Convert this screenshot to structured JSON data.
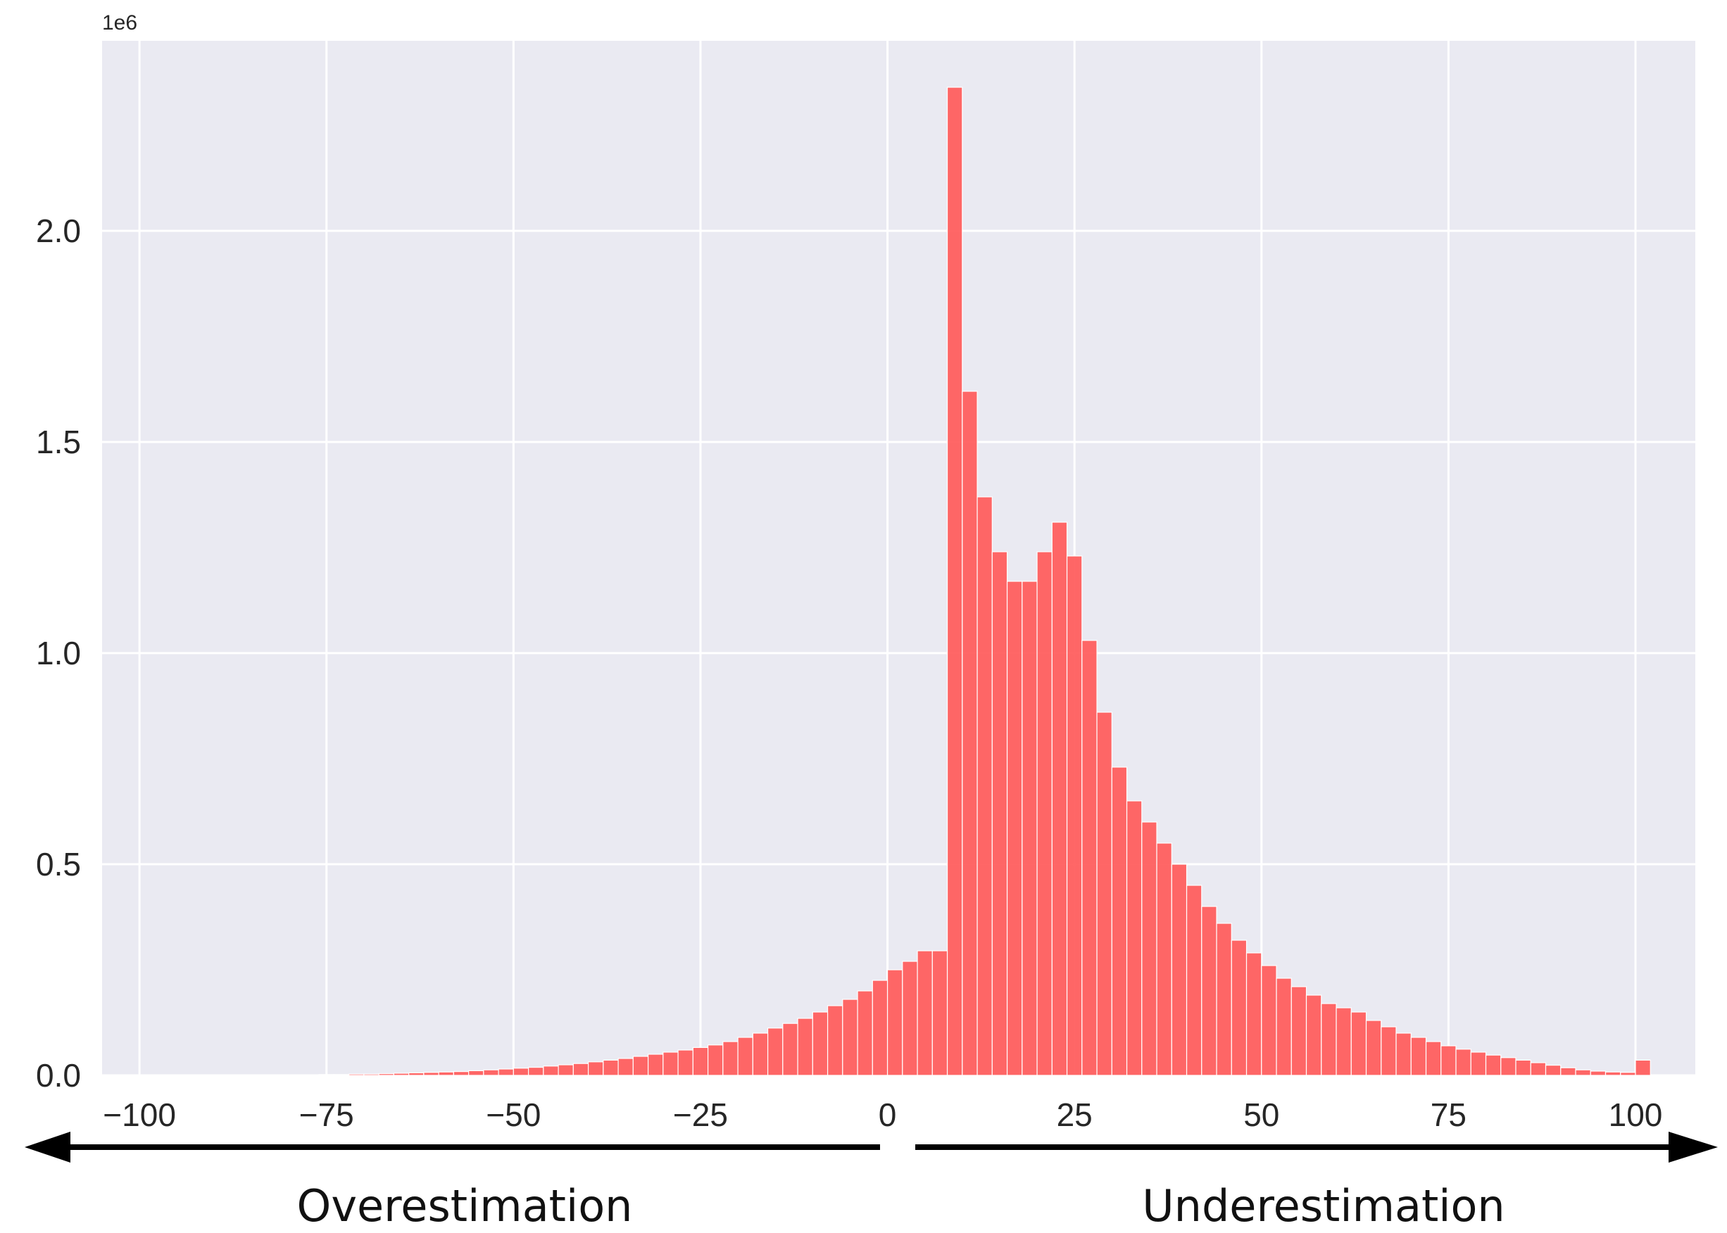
{
  "colors": {
    "bar": "#ff5a5a",
    "plot_background": "#eaeaf2",
    "grid": "#ffffff",
    "arrow": "#000000"
  },
  "chart_data": {
    "type": "bar",
    "title": "",
    "xlabel": "",
    "ylabel": "",
    "y_offset_label": "1e6",
    "xlim": [
      -105,
      108
    ],
    "ylim": [
      0,
      2.45
    ],
    "grid": true,
    "xticks": [
      -100,
      -75,
      -50,
      -25,
      0,
      25,
      50,
      75,
      100
    ],
    "xtick_labels": [
      "−100",
      "−75",
      "−50",
      "−25",
      "0",
      "25",
      "50",
      "75",
      "100"
    ],
    "yticks": [
      0.0,
      0.5,
      1.0,
      1.5,
      2.0
    ],
    "ytick_labels": [
      "0.0",
      "0.5",
      "1.0",
      "1.5",
      "2.0"
    ],
    "bin_start": -100,
    "bin_width": 2,
    "values": [
      0,
      0,
      0,
      0,
      0,
      0,
      0,
      0,
      0,
      0,
      0,
      0,
      0.002,
      0.002,
      0.003,
      0.003,
      0.004,
      0.005,
      0.006,
      0.007,
      0.008,
      0.009,
      0.011,
      0.013,
      0.015,
      0.017,
      0.019,
      0.022,
      0.025,
      0.028,
      0.032,
      0.036,
      0.04,
      0.045,
      0.05,
      0.055,
      0.06,
      0.066,
      0.072,
      0.08,
      0.09,
      0.1,
      0.112,
      0.123,
      0.135,
      0.15,
      0.165,
      0.18,
      0.2,
      0.225,
      0.25,
      0.27,
      0.295,
      0.295,
      2.34,
      1.62,
      1.37,
      1.24,
      1.17,
      1.17,
      1.24,
      1.31,
      1.23,
      1.03,
      0.86,
      0.73,
      0.65,
      0.6,
      0.55,
      0.5,
      0.45,
      0.4,
      0.36,
      0.32,
      0.29,
      0.26,
      0.23,
      0.21,
      0.19,
      0.17,
      0.16,
      0.15,
      0.13,
      0.115,
      0.1,
      0.09,
      0.08,
      0.07,
      0.062,
      0.055,
      0.048,
      0.042,
      0.036,
      0.03,
      0.024,
      0.018,
      0.013,
      0.01,
      0.008,
      0.007,
      0.036
    ],
    "annotations": {
      "left": "Overestimation",
      "right": "Underestimation"
    }
  }
}
